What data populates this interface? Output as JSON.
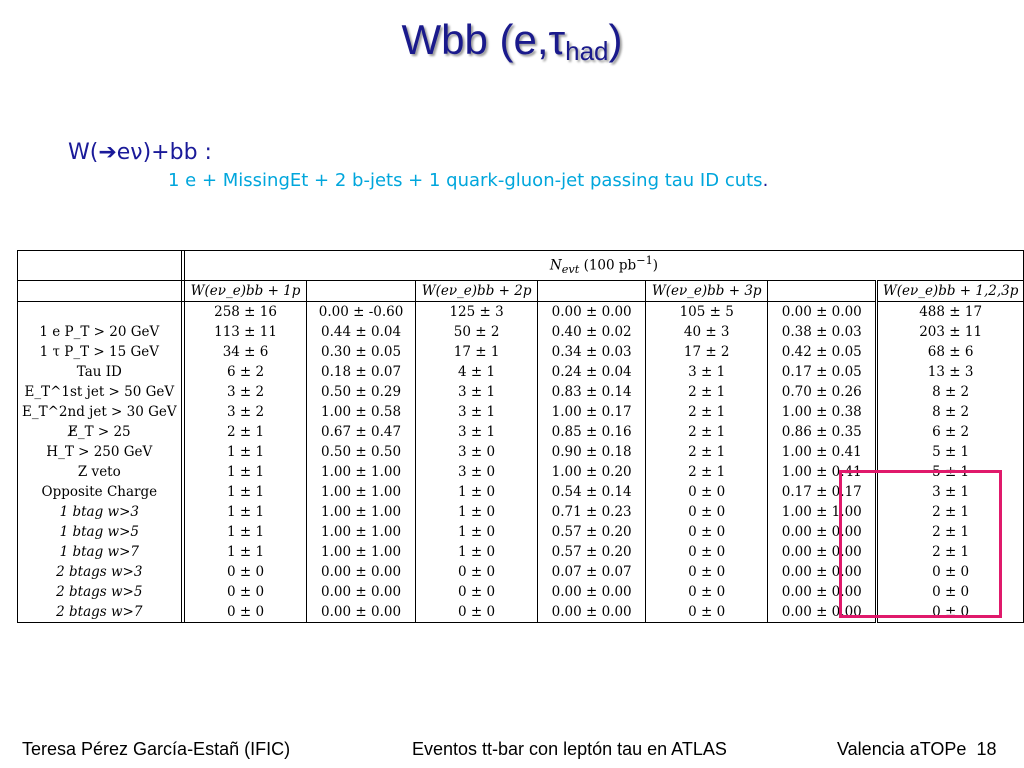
{
  "slide": {
    "title_main": "Wbb (e,",
    "title_tau": "τ",
    "title_sub": "had",
    "title_close": ")",
    "subtitle": "W(➔eν)+bb :",
    "description": "1 e + MissingEt + 2 b-jets + 1 quark-gluon-jet passing tau ID cuts",
    "description_end": "."
  },
  "table": {
    "header_main": "N",
    "header_main_sub": "evt",
    "header_main_rest": " (100 pb",
    "header_main_sup": "−1",
    "header_main_close": ")",
    "columns": [
      "W(eν_e)bb + 1p",
      "",
      "W(eν_e)bb + 2p",
      "",
      "W(eν_e)bb + 3p",
      "",
      "W(eν_e)bb + 1,2,3p"
    ],
    "rows": [
      {
        "label": "",
        "v": [
          "258 ± 16",
          "0.00 ± -0.60",
          "125 ± 3",
          "0.00 ± 0.00",
          "105 ± 5",
          "0.00 ± 0.00",
          "488 ± 17"
        ]
      },
      {
        "label": "1 e P_T > 20 GeV",
        "v": [
          "113 ± 11",
          "0.44 ± 0.04",
          "50 ± 2",
          "0.40 ± 0.02",
          "40 ± 3",
          "0.38 ± 0.03",
          "203 ± 11"
        ]
      },
      {
        "label": "1 τ P_T > 15 GeV",
        "v": [
          "34 ± 6",
          "0.30 ± 0.05",
          "17 ± 1",
          "0.34 ± 0.03",
          "17 ± 2",
          "0.42 ± 0.05",
          "68 ± 6"
        ]
      },
      {
        "label": "Tau ID",
        "v": [
          "6 ± 2",
          "0.18 ± 0.07",
          "4 ± 1",
          "0.24 ± 0.04",
          "3 ± 1",
          "0.17 ± 0.05",
          "13 ± 3"
        ]
      },
      {
        "label": "E_T^1st jet > 50 GeV",
        "v": [
          "3 ± 2",
          "0.50 ± 0.29",
          "3 ± 1",
          "0.83 ± 0.14",
          "2 ± 1",
          "0.70 ± 0.26",
          "8 ± 2"
        ]
      },
      {
        "label": "E_T^2nd jet > 30 GeV",
        "v": [
          "3 ± 2",
          "1.00 ± 0.58",
          "3 ± 1",
          "1.00 ± 0.17",
          "2 ± 1",
          "1.00 ± 0.38",
          "8 ± 2"
        ]
      },
      {
        "label": "E̸_T > 25",
        "v": [
          "2 ± 1",
          "0.67 ± 0.47",
          "3 ± 1",
          "0.85 ± 0.16",
          "2 ± 1",
          "0.86 ± 0.35",
          "6 ± 2"
        ]
      },
      {
        "label": "H_T > 250 GeV",
        "v": [
          "1 ± 1",
          "0.50 ± 0.50",
          "3 ± 0",
          "0.90 ± 0.18",
          "2 ± 1",
          "1.00 ± 0.41",
          "5 ± 1"
        ]
      },
      {
        "label": "Z veto",
        "v": [
          "1 ± 1",
          "1.00 ± 1.00",
          "3 ± 0",
          "1.00 ± 0.20",
          "2 ± 1",
          "1.00 ± 0.41",
          "5 ± 1"
        ]
      },
      {
        "label": "Opposite Charge",
        "v": [
          "1 ± 1",
          "1.00 ± 1.00",
          "1 ± 0",
          "0.54 ± 0.14",
          "0 ± 0",
          "0.17 ± 0.17",
          "3 ± 1"
        ]
      },
      {
        "label": "1 btag w>3",
        "v": [
          "1 ± 1",
          "1.00 ± 1.00",
          "1 ± 0",
          "0.71 ± 0.23",
          "0 ± 0",
          "1.00 ± 1.00",
          "2 ± 1"
        ]
      },
      {
        "label": "1 btag w>5",
        "v": [
          "1 ± 1",
          "1.00 ± 1.00",
          "1 ± 0",
          "0.57 ± 0.20",
          "0 ± 0",
          "0.00 ± 0.00",
          "2 ± 1"
        ]
      },
      {
        "label": "1 btag w>7",
        "v": [
          "1 ± 1",
          "1.00 ± 1.00",
          "1 ± 0",
          "0.57 ± 0.20",
          "0 ± 0",
          "0.00 ± 0.00",
          "2 ± 1"
        ]
      },
      {
        "label": "2 btags w>3",
        "v": [
          "0 ± 0",
          "0.00 ± 0.00",
          "0 ± 0",
          "0.07 ± 0.07",
          "0 ± 0",
          "0.00 ± 0.00",
          "0 ± 0"
        ]
      },
      {
        "label": "2 btags w>5",
        "v": [
          "0 ± 0",
          "0.00 ± 0.00",
          "0 ± 0",
          "0.00 ± 0.00",
          "0 ± 0",
          "0.00 ± 0.00",
          "0 ± 0"
        ]
      },
      {
        "label": "2 btags w>7",
        "v": [
          "0 ± 0",
          "0.00 ± 0.00",
          "0 ± 0",
          "0.00 ± 0.00",
          "0 ± 0",
          "0.00 ± 0.00",
          "0 ± 0"
        ]
      }
    ]
  },
  "footer": {
    "author": "Teresa Pérez García-Estañ (IFIC)",
    "topic": "Eventos tt-bar con leptón tau en ATLAS",
    "venue": "Valencia aTOPe",
    "page_number": "18"
  },
  "colors": {
    "title": "#1a1a8c",
    "subtitle": "#1a1a99",
    "description": "#00a6dc",
    "highlight_box": "#e0196b"
  }
}
